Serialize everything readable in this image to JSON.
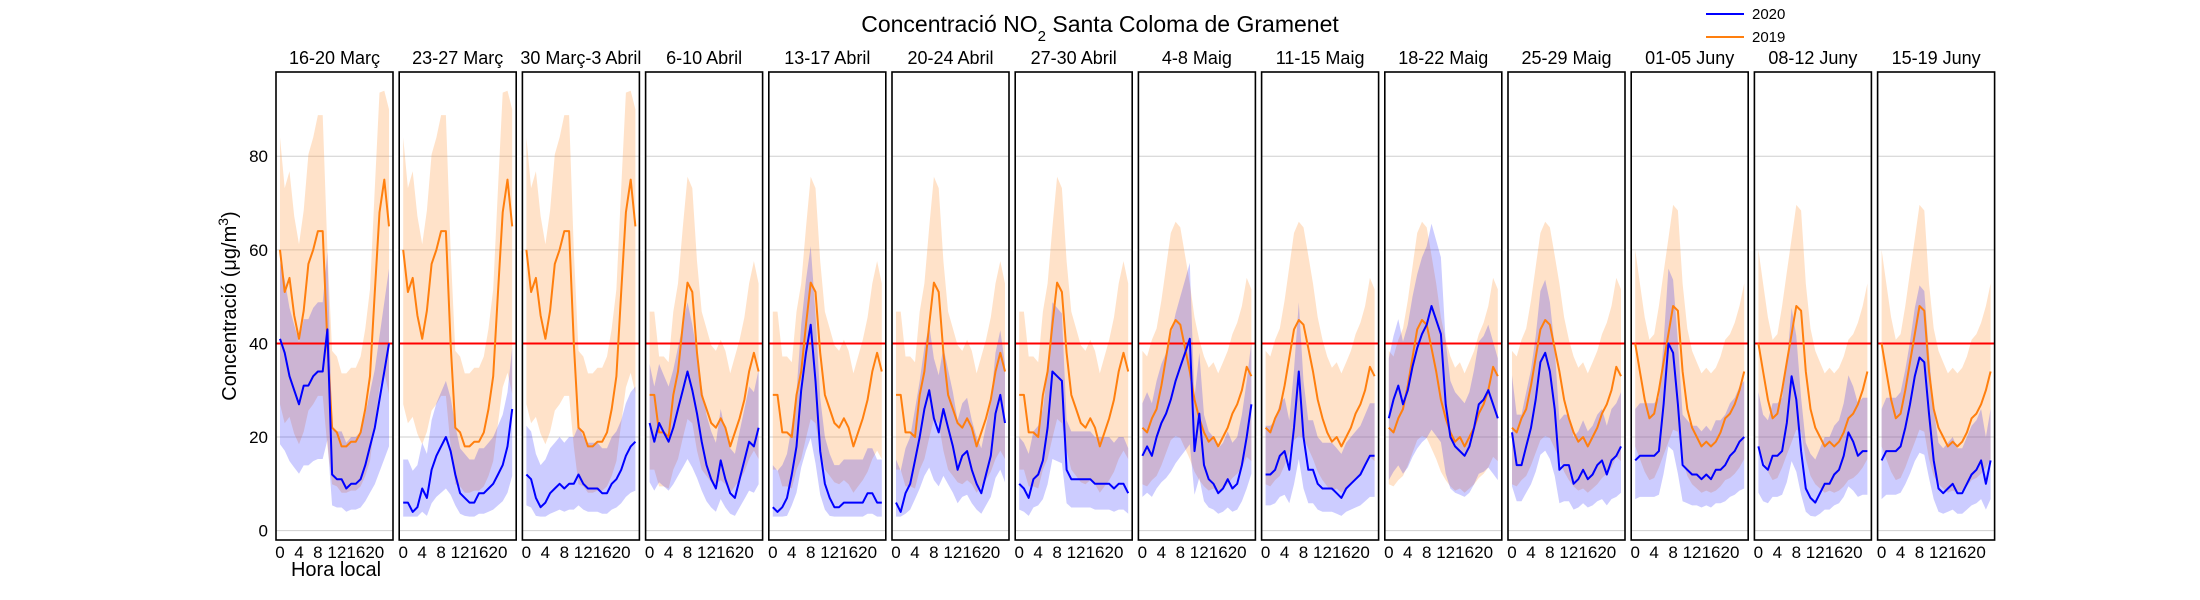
{
  "chart_data": {
    "type": "line",
    "title": "Concentració NO₂ Santa Coloma de Gramenet",
    "title_parts": {
      "before": "Concentració NO",
      "subscript": "2",
      "after": " Santa Coloma de Gramenet"
    },
    "ylabel": "Concentració (μg/m³)",
    "ylabel_parts": {
      "before": "Concentració (μg/m",
      "superscript": "3",
      "after": ")"
    },
    "xlabel": "Hora local",
    "ylim": [
      -2,
      98
    ],
    "xlim": [
      0,
      23
    ],
    "yticks": [
      0,
      20,
      40,
      60,
      80
    ],
    "xticks": [
      0,
      4,
      8,
      12,
      16,
      20
    ],
    "xtick_labels": [
      "0",
      "4",
      "8",
      "12",
      "16",
      "20"
    ],
    "grid": "horizontal",
    "legend_position": "top-right",
    "limit_line": {
      "value": 40,
      "color": "#ff0000"
    },
    "colors": {
      "s2020": "#0000ff",
      "s2019": "#ff7f0e",
      "band2020": "#0000ff",
      "band2019": "#ffa04d"
    },
    "legend": [
      {
        "label": "2020",
        "color": "#0000ff"
      },
      {
        "label": "2019",
        "color": "#ff7f0e"
      }
    ],
    "x": [
      0,
      1,
      2,
      3,
      4,
      5,
      6,
      7,
      8,
      9,
      10,
      11,
      12,
      13,
      14,
      15,
      16,
      17,
      18,
      19,
      20,
      21,
      22,
      23
    ],
    "panels": [
      {
        "title": "16-20 Març",
        "s2020": [
          41,
          38,
          33,
          30,
          27,
          31,
          31,
          33,
          34,
          34,
          43,
          12,
          11,
          11,
          9,
          10,
          10,
          11,
          14,
          18,
          22,
          28,
          34,
          40
        ],
        "s2019": [
          60,
          51,
          54,
          46,
          41,
          47,
          57,
          60,
          64,
          64,
          40,
          22,
          21,
          18,
          18,
          19,
          19,
          21,
          26,
          33,
          51,
          68,
          75,
          65
        ]
      },
      {
        "title": "23-27 Març",
        "s2020": [
          6,
          6,
          4,
          5,
          9,
          7,
          13,
          16,
          18,
          20,
          17,
          12,
          8,
          7,
          6,
          6,
          8,
          8,
          9,
          10,
          12,
          14,
          18,
          26
        ],
        "s2019": [
          60,
          51,
          54,
          46,
          41,
          47,
          57,
          60,
          64,
          64,
          40,
          22,
          21,
          18,
          18,
          19,
          19,
          21,
          26,
          33,
          51,
          68,
          75,
          65
        ]
      },
      {
        "title": "30 Març-3 Abril",
        "s2020": [
          12,
          11,
          7,
          5,
          6,
          8,
          9,
          10,
          9,
          10,
          10,
          12,
          10,
          9,
          9,
          9,
          8,
          8,
          10,
          11,
          13,
          16,
          18,
          19
        ],
        "s2019": [
          60,
          51,
          54,
          46,
          41,
          47,
          57,
          60,
          64,
          64,
          40,
          22,
          21,
          18,
          18,
          19,
          19,
          21,
          26,
          33,
          51,
          68,
          75,
          65
        ]
      },
      {
        "title": "6-10 Abril",
        "s2020": [
          23,
          19,
          23,
          21,
          19,
          22,
          26,
          30,
          34,
          30,
          25,
          19,
          14,
          11,
          9,
          15,
          11,
          8,
          7,
          11,
          15,
          19,
          18,
          22
        ],
        "s2019": [
          29,
          29,
          21,
          21,
          20,
          29,
          34,
          44,
          53,
          51,
          38,
          29,
          26,
          23,
          22,
          24,
          22,
          18,
          21,
          24,
          28,
          34,
          38,
          34
        ]
      },
      {
        "title": "13-17 Abril",
        "s2020": [
          5,
          4,
          5,
          7,
          12,
          18,
          30,
          38,
          44,
          32,
          17,
          10,
          7,
          5,
          5,
          6,
          6,
          6,
          6,
          6,
          8,
          8,
          6,
          6
        ],
        "s2019": [
          29,
          29,
          21,
          21,
          20,
          29,
          34,
          44,
          53,
          51,
          38,
          29,
          26,
          23,
          22,
          24,
          22,
          18,
          21,
          24,
          28,
          34,
          38,
          34
        ]
      },
      {
        "title": "20-24 Abril",
        "s2020": [
          6,
          4,
          8,
          10,
          15,
          20,
          26,
          30,
          24,
          21,
          26,
          22,
          18,
          13,
          16,
          17,
          13,
          10,
          8,
          12,
          16,
          25,
          29,
          23
        ],
        "s2019": [
          29,
          29,
          21,
          21,
          20,
          29,
          34,
          44,
          53,
          51,
          38,
          29,
          26,
          23,
          22,
          24,
          22,
          18,
          21,
          24,
          28,
          34,
          38,
          34
        ]
      },
      {
        "title": "27-30 Abril",
        "s2020": [
          10,
          9,
          7,
          11,
          12,
          15,
          22,
          34,
          33,
          32,
          13,
          11,
          11,
          11,
          11,
          11,
          10,
          10,
          10,
          10,
          9,
          10,
          10,
          8
        ],
        "s2019": [
          29,
          29,
          21,
          21,
          20,
          29,
          34,
          44,
          53,
          51,
          38,
          29,
          26,
          23,
          22,
          24,
          22,
          18,
          21,
          24,
          28,
          34,
          38,
          34
        ]
      },
      {
        "title": "4-8 Maig",
        "s2020": [
          16,
          18,
          16,
          20,
          23,
          25,
          28,
          32,
          35,
          38,
          41,
          17,
          25,
          14,
          11,
          10,
          8,
          9,
          11,
          9,
          10,
          14,
          20,
          27
        ],
        "s2019": [
          22,
          21,
          24,
          26,
          31,
          37,
          43,
          45,
          44,
          39,
          34,
          28,
          24,
          21,
          19,
          20,
          18,
          20,
          22,
          25,
          27,
          30,
          35,
          33
        ]
      },
      {
        "title": "11-15 Maig",
        "s2020": [
          12,
          12,
          13,
          16,
          17,
          13,
          22,
          34,
          20,
          13,
          13,
          10,
          9,
          9,
          9,
          8,
          7,
          9,
          10,
          11,
          12,
          14,
          16,
          16
        ],
        "s2019": [
          22,
          21,
          24,
          26,
          31,
          37,
          43,
          45,
          44,
          39,
          34,
          28,
          24,
          21,
          19,
          20,
          18,
          20,
          22,
          25,
          27,
          30,
          35,
          33
        ]
      },
      {
        "title": "18-22 Maig",
        "s2020": [
          24,
          28,
          31,
          27,
          30,
          35,
          39,
          42,
          44,
          48,
          45,
          42,
          27,
          20,
          18,
          17,
          16,
          18,
          22,
          27,
          28,
          30,
          27,
          24
        ],
        "s2019": [
          22,
          21,
          24,
          26,
          31,
          37,
          43,
          45,
          44,
          39,
          34,
          28,
          24,
          21,
          19,
          20,
          18,
          20,
          22,
          25,
          27,
          30,
          35,
          33
        ]
      },
      {
        "title": "25-29 Maig",
        "s2020": [
          21,
          14,
          14,
          18,
          22,
          28,
          36,
          38,
          34,
          26,
          13,
          14,
          14,
          10,
          11,
          13,
          11,
          12,
          14,
          15,
          12,
          15,
          16,
          18
        ],
        "s2019": [
          22,
          21,
          24,
          26,
          31,
          37,
          43,
          45,
          44,
          39,
          34,
          28,
          24,
          21,
          19,
          20,
          18,
          20,
          22,
          25,
          27,
          30,
          35,
          33
        ]
      },
      {
        "title": "01-05 Juny",
        "s2020": [
          15,
          16,
          16,
          16,
          16,
          17,
          27,
          40,
          38,
          27,
          14,
          13,
          12,
          12,
          11,
          12,
          11,
          13,
          13,
          14,
          16,
          17,
          19,
          20
        ],
        "s2019": [
          40,
          34,
          28,
          24,
          25,
          30,
          36,
          42,
          48,
          47,
          34,
          26,
          22,
          20,
          18,
          19,
          18,
          19,
          21,
          24,
          25,
          27,
          30,
          34
        ]
      },
      {
        "title": "08-12 Juny",
        "s2020": [
          18,
          14,
          13,
          16,
          16,
          17,
          23,
          33,
          28,
          17,
          9,
          7,
          6,
          8,
          10,
          10,
          12,
          13,
          16,
          21,
          19,
          16,
          17,
          17
        ],
        "s2019": [
          40,
          34,
          28,
          24,
          25,
          30,
          36,
          42,
          48,
          47,
          34,
          26,
          22,
          20,
          18,
          19,
          18,
          19,
          21,
          24,
          25,
          27,
          30,
          34
        ]
      },
      {
        "title": "15-19 Juny",
        "s2020": [
          15,
          17,
          17,
          17,
          18,
          22,
          27,
          33,
          37,
          36,
          25,
          15,
          9,
          8,
          9,
          10,
          8,
          8,
          10,
          12,
          13,
          15,
          10,
          15
        ],
        "s2019": [
          40,
          34,
          28,
          24,
          25,
          30,
          36,
          42,
          48,
          47,
          34,
          26,
          22,
          20,
          18,
          19,
          18,
          19,
          21,
          24,
          25,
          27,
          30,
          34
        ]
      }
    ]
  }
}
